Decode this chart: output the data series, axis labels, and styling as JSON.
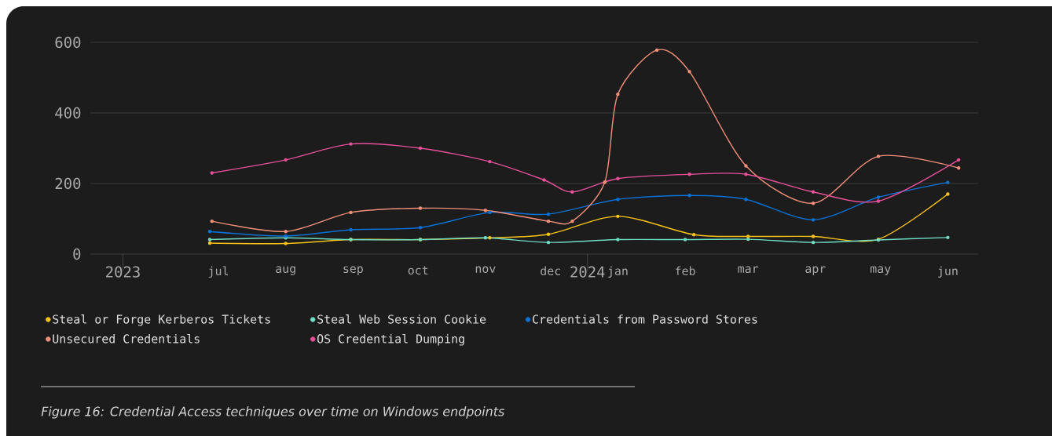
{
  "chart_data": {
    "type": "line",
    "xlim": [
      "2023-05-17",
      "2024-06-29"
    ],
    "xticks": [
      {
        "value": "2023-06-01",
        "label": "2023"
      },
      {
        "value": "2023-07-15",
        "label": "jul"
      },
      {
        "value": "2023-08-15",
        "label": "aug"
      },
      {
        "value": "2023-09-15",
        "label": "sep"
      },
      {
        "value": "2023-10-15",
        "label": "oct"
      },
      {
        "value": "2023-11-15",
        "label": "nov"
      },
      {
        "value": "2023-12-15",
        "label": "dec"
      },
      {
        "value": "2024-01-01",
        "label": "2024"
      },
      {
        "value": "2024-01-15",
        "label": "jan"
      },
      {
        "value": "2024-02-15",
        "label": "feb"
      },
      {
        "value": "2024-03-15",
        "label": "mar"
      },
      {
        "value": "2024-04-15",
        "label": "apr"
      },
      {
        "value": "2024-05-15",
        "label": "may"
      },
      {
        "value": "2024-06-15",
        "label": "jun"
      }
    ],
    "ylim": [
      0,
      600
    ],
    "yticks": [
      0,
      200,
      400,
      600
    ],
    "grid": "y",
    "legend": "bottom",
    "marker": "circle",
    "series": [
      {
        "name": "Steal or Forge Kerberos Tickets",
        "color": "#fcc419",
        "x": [
          "2023-07-11",
          "2023-08-15",
          "2023-09-14",
          "2023-10-16",
          "2023-11-17",
          "2023-12-14",
          "2024-01-15",
          "2024-02-19",
          "2024-03-15",
          "2024-04-14",
          "2024-05-14",
          "2024-06-15"
        ],
        "values": [
          31,
          30,
          41,
          41,
          46,
          56,
          107,
          55,
          50,
          50,
          42,
          170
        ]
      },
      {
        "name": "Steal Web Session Cookie",
        "color": "#6fdcc4",
        "x": [
          "2023-07-11",
          "2023-08-15",
          "2023-09-14",
          "2023-10-16",
          "2023-11-15",
          "2023-12-14",
          "2024-01-15",
          "2024-02-15",
          "2024-03-15",
          "2024-04-14",
          "2024-05-14",
          "2024-06-15"
        ],
        "values": [
          41,
          46,
          41,
          41,
          46,
          33,
          41,
          41,
          42,
          33,
          40,
          47
        ]
      },
      {
        "name": "Credentials from Password Stores",
        "color": "#0a72d6",
        "x": [
          "2023-07-11",
          "2023-08-15",
          "2023-09-14",
          "2023-10-16",
          "2023-11-17",
          "2023-12-14",
          "2024-01-15",
          "2024-02-17",
          "2024-03-14",
          "2024-04-14",
          "2024-05-14",
          "2024-06-15"
        ],
        "values": [
          64,
          51,
          69,
          75,
          118,
          113,
          155,
          166,
          155,
          97,
          161,
          203
        ]
      },
      {
        "name": "Unsecured Credentials",
        "color": "#f4907a",
        "x": [
          "2023-07-12",
          "2023-08-15",
          "2023-09-14",
          "2023-10-16",
          "2023-11-15",
          "2023-12-14",
          "2023-12-25",
          "2024-01-09",
          "2024-01-15",
          "2024-02-02",
          "2024-02-17",
          "2024-03-14",
          "2024-04-14",
          "2024-05-14",
          "2024-06-20"
        ],
        "values": [
          93,
          64,
          118,
          130,
          124,
          93,
          93,
          204,
          453,
          578,
          517,
          250,
          144,
          277,
          244
        ]
      },
      {
        "name": "OS Credential Dumping",
        "color": "#e8509a",
        "x": [
          "2023-07-12",
          "2023-08-15",
          "2023-09-14",
          "2023-10-16",
          "2023-11-17",
          "2023-12-12",
          "2023-12-25",
          "2024-01-15",
          "2024-02-17",
          "2024-03-14",
          "2024-04-14",
          "2024-05-14",
          "2024-06-20"
        ],
        "values": [
          230,
          267,
          312,
          300,
          262,
          210,
          176,
          214,
          226,
          226,
          176,
          150,
          267
        ]
      }
    ],
    "annotations": [
      "Figure 16: Credential Access techniques over time on Windows endpoints"
    ]
  }
}
